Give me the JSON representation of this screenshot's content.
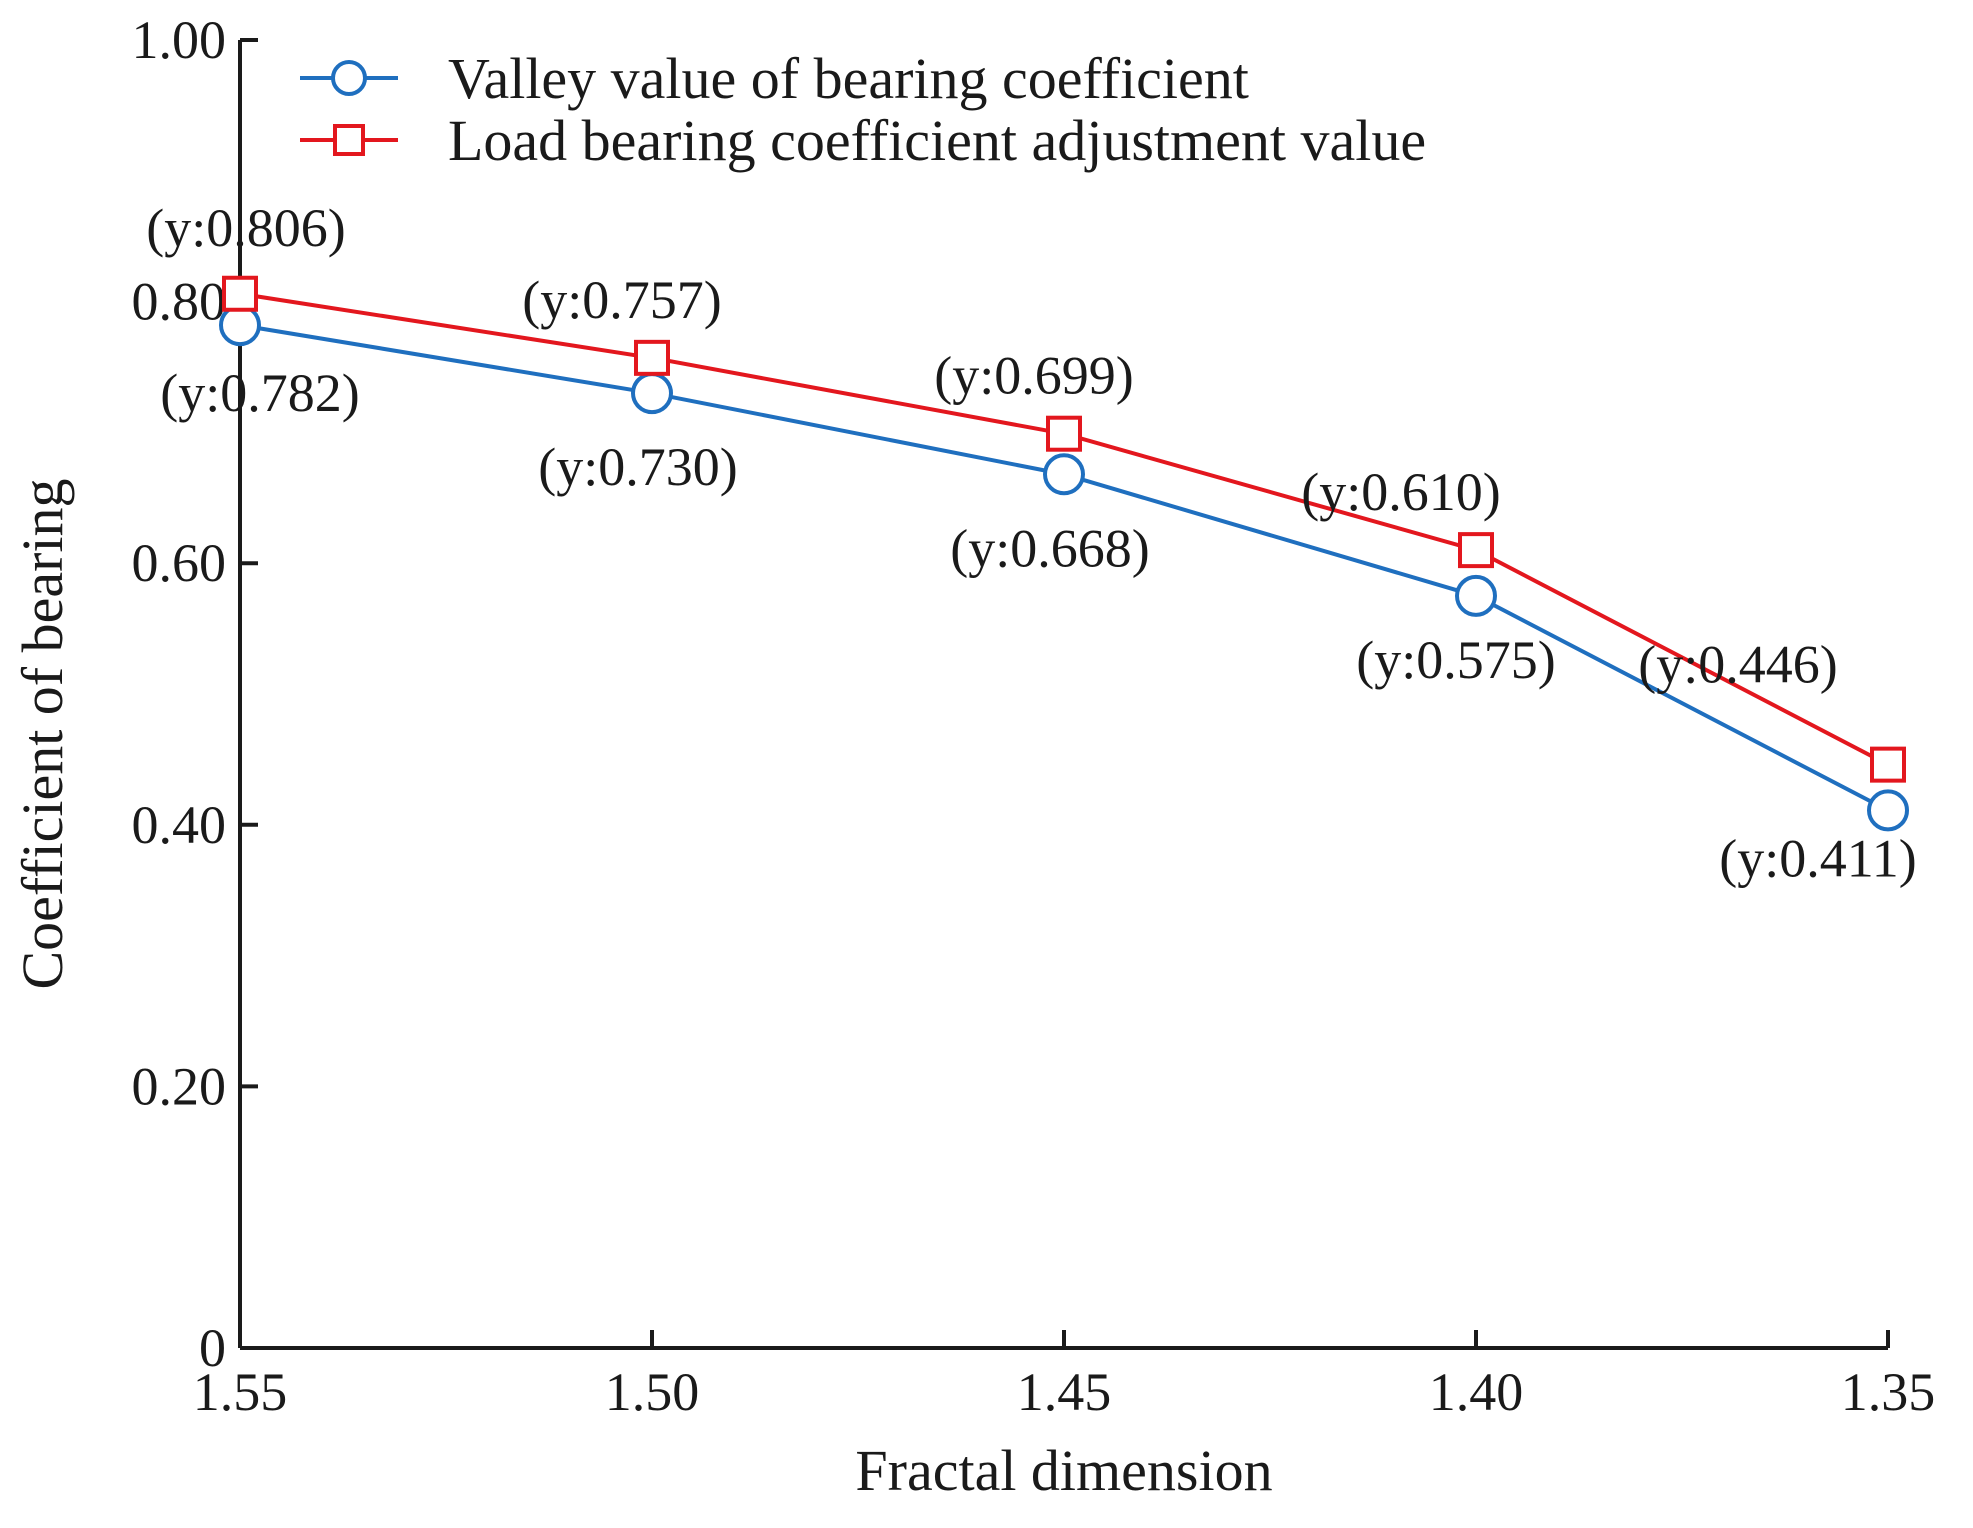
{
  "chart_data": {
    "type": "line",
    "title": "",
    "xlabel": "Fractal dimension",
    "ylabel": "Coefficient of bearing",
    "x": [
      1.55,
      1.5,
      1.45,
      1.4,
      1.35
    ],
    "x_tick_labels": [
      "1.55",
      "1.50",
      "1.45",
      "1.40",
      "1.35"
    ],
    "xlim": [
      1.55,
      1.35
    ],
    "y_ticks": [
      0,
      0.2,
      0.4,
      0.6,
      0.8,
      1.0
    ],
    "y_tick_labels": [
      "0",
      "0.20",
      "0.40",
      "0.60",
      "0.80",
      "1.00"
    ],
    "ylim": [
      0,
      1.0
    ],
    "grid": false,
    "legend_position": "top-left",
    "series": [
      {
        "name": "Valley value of bearing coefficient",
        "color": "#1f6fbf",
        "marker": "circle",
        "values": [
          0.782,
          0.73,
          0.668,
          0.575,
          0.411
        ],
        "labels": [
          "(y:0.782)",
          "(y:0.730)",
          "(y:0.668)",
          "(y:0.575)",
          "(y:0.411)"
        ]
      },
      {
        "name": "Load bearing coefficient adjustment value",
        "color": "#e3171e",
        "marker": "square",
        "values": [
          0.806,
          0.757,
          0.699,
          0.61,
          0.446
        ],
        "labels": [
          "(y:0.806)",
          "(y:0.757)",
          "(y:0.699)",
          "(y:0.610)",
          "(y:0.446)"
        ]
      }
    ]
  }
}
